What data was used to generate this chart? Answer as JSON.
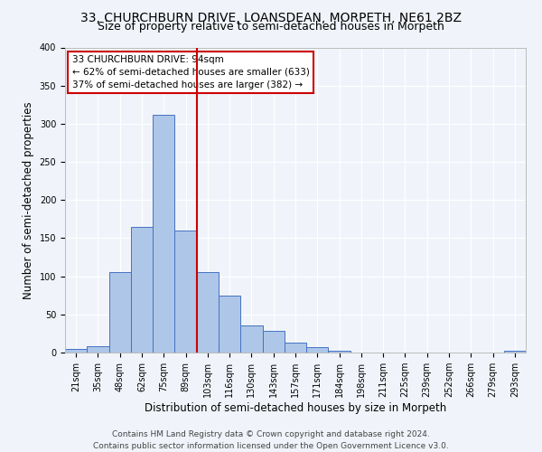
{
  "title": "33, CHURCHBURN DRIVE, LOANSDEAN, MORPETH, NE61 2BZ",
  "subtitle": "Size of property relative to semi-detached houses in Morpeth",
  "xlabel": "Distribution of semi-detached houses by size in Morpeth",
  "ylabel": "Number of semi-detached properties",
  "bin_labels": [
    "21sqm",
    "35sqm",
    "48sqm",
    "62sqm",
    "75sqm",
    "89sqm",
    "103sqm",
    "116sqm",
    "130sqm",
    "143sqm",
    "157sqm",
    "171sqm",
    "184sqm",
    "198sqm",
    "211sqm",
    "225sqm",
    "239sqm",
    "252sqm",
    "266sqm",
    "279sqm",
    "293sqm"
  ],
  "bar_heights": [
    5,
    8,
    105,
    165,
    312,
    160,
    105,
    75,
    36,
    28,
    13,
    7,
    2,
    0,
    0,
    0,
    0,
    0,
    0,
    0,
    2
  ],
  "bar_color": "#aec6e8",
  "bar_edge_color": "#4472c4",
  "vline_x_index": 5,
  "vline_color": "#cc0000",
  "annotation_title": "33 CHURCHBURN DRIVE: 94sqm",
  "annotation_line1": "← 62% of semi-detached houses are smaller (633)",
  "annotation_line2": "37% of semi-detached houses are larger (382) →",
  "annotation_box_color": "#ffffff",
  "annotation_box_edge": "#cc0000",
  "ylim": [
    0,
    400
  ],
  "yticks": [
    0,
    50,
    100,
    150,
    200,
    250,
    300,
    350,
    400
  ],
  "footer_line1": "Contains HM Land Registry data © Crown copyright and database right 2024.",
  "footer_line2": "Contains public sector information licensed under the Open Government Licence v3.0.",
  "background_color": "#f0f4fa",
  "grid_color": "#ffffff",
  "title_fontsize": 10,
  "subtitle_fontsize": 9,
  "axis_label_fontsize": 8.5,
  "tick_fontsize": 7,
  "annotation_fontsize": 7.5,
  "footer_fontsize": 6.5
}
